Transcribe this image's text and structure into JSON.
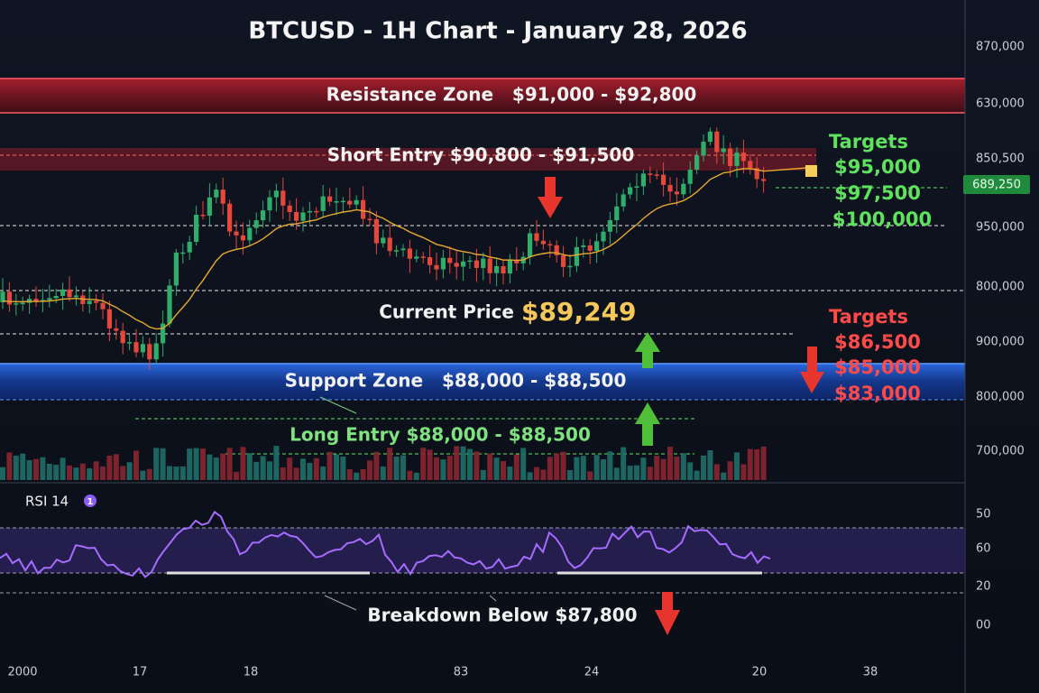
{
  "title": "BTCUSD - 1H Chart - January 28, 2026",
  "zones": {
    "resistance": "Resistance Zone   $91,000 - $92,800",
    "short_entry": "Short Entry $90,800 - $91,500",
    "current_price_label": "Current Price",
    "current_price": "$89,249",
    "support": "Support Zone   $88,000 - $88,500",
    "long_entry": "Long Entry $88,000 - $88,500",
    "breakdown": "Breakdown Below $87,800"
  },
  "targets_up": {
    "label": "Targets",
    "values": [
      "$95,000",
      "$97,500",
      "$100,000"
    ]
  },
  "targets_down": {
    "label": "Targets",
    "values": [
      "$86,500",
      "$85,000",
      "$83,000"
    ]
  },
  "price_axis": [
    "870,000",
    "630,000",
    "850,500",
    "950,000",
    "800,000",
    "900,000",
    "800,000",
    "700,000"
  ],
  "price_badge": "689,250",
  "time_axis": [
    "2000",
    "17",
    "18",
    "83",
    "24",
    "20",
    "38"
  ],
  "rsi": {
    "label": "RSI 14",
    "badge": "1",
    "axis": [
      "50",
      "60",
      "20",
      "00"
    ]
  }
}
